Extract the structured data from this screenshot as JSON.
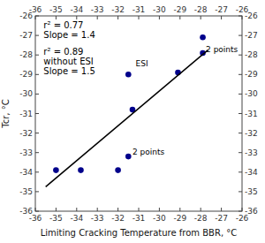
{
  "chart_data": {
    "type": "scatter",
    "x_label": "Limiting Cracking Temperature from BBR, °C",
    "y_label": "Tcr, °C",
    "xlim": [
      -36,
      -26
    ],
    "ylim": [
      -36,
      -26
    ],
    "xticks": [
      -36,
      -35,
      -34,
      -33,
      -32,
      -31,
      -30,
      -29,
      -28,
      -27,
      -26
    ],
    "yticks": [
      -36,
      -35,
      -34,
      -33,
      -32,
      -31,
      -30,
      -29,
      -28,
      -27,
      -26
    ],
    "grid": false,
    "series": [
      {
        "type": "scatter",
        "color": "#00008B",
        "marker": "circle",
        "x": [
          -35.0,
          -33.8,
          -32.0,
          -31.5,
          -31.5,
          -31.3,
          -29.1,
          -27.9,
          -27.9
        ],
        "values": [
          -33.9,
          -33.9,
          -33.9,
          -29.0,
          -33.2,
          -30.8,
          -28.9,
          -27.1,
          -27.9
        ]
      },
      {
        "type": "line",
        "color": "black",
        "line_style": "solid",
        "x": [
          -35.5,
          -27.65
        ],
        "values": [
          -34.75,
          -27.75
        ]
      }
    ],
    "annotations": [
      {
        "text": "r² = 0.77\nSlope = 1.4"
      },
      {
        "text": "r² = 0.89\nwithout ESI\nSlope = 1.5"
      },
      {
        "text": "ESI",
        "x": -31.15,
        "y": -28.6
      },
      {
        "text": "2 points",
        "x": -27.75,
        "y": -27.85
      },
      {
        "text": "2 points",
        "x": -31.3,
        "y": -33.1
      }
    ]
  }
}
